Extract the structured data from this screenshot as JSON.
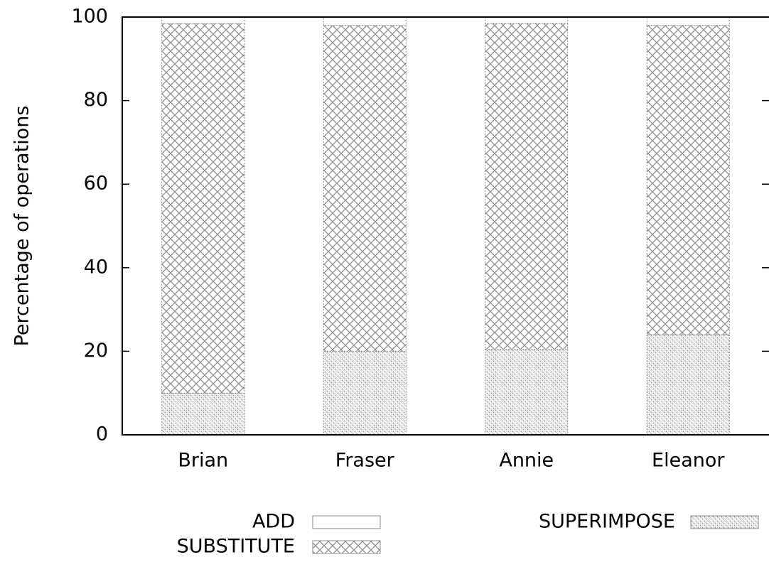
{
  "chart_data": {
    "type": "stacked_bar",
    "y_label": "Percentage of operations",
    "categories": [
      "Brian",
      "Fraser",
      "Annie",
      "Eleanor"
    ],
    "series": [
      {
        "name": "ADD",
        "color": "#888888",
        "pattern": "none",
        "values": [
          1.5,
          2,
          1.5,
          2
        ]
      },
      {
        "name": "SUBSTITUTE",
        "color": "#888888",
        "pattern": "crosshatch",
        "values": [
          88.5,
          78,
          78,
          74
        ]
      },
      {
        "name": "SUPERIMPOSE",
        "color": "#888888",
        "pattern": "dots",
        "values": [
          10,
          20,
          20.5,
          24
        ]
      }
    ],
    "ylim": [
      0,
      100
    ],
    "yticks": [
      0,
      20,
      40,
      60,
      80,
      100
    ]
  }
}
